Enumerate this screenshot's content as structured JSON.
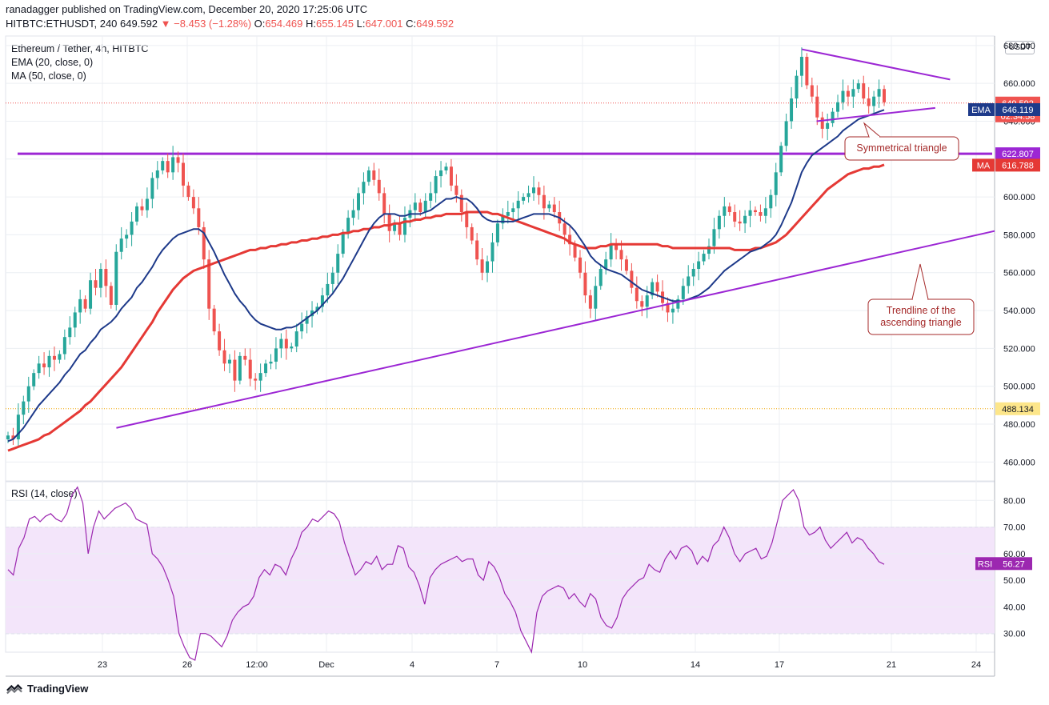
{
  "header": {
    "publisher": "ranadagger published on TradingView.com, December 20, 2020 17:25:06 UTC",
    "symbol": "HITBTC:ETHUSDT, 240",
    "last": "649.592",
    "change": "−8.453 (−1.28%)",
    "open_label": "O:",
    "open": "654.469",
    "high_label": "H:",
    "high": "655.145",
    "low_label": "L:",
    "low": "647.001",
    "close_label": "C:",
    "close": "649.592"
  },
  "legend": {
    "title": "Ethereum / Tether, 4h, HITBTC",
    "ema": "EMA (20, close, 0)",
    "ma": "MA (50, close, 0)",
    "rsi": "RSI (14, close)"
  },
  "currency": "USDT",
  "footer": {
    "brand": "TradingView"
  },
  "colors": {
    "up": "#26a69a",
    "down": "#ef5350",
    "ema": "#1e3a8a",
    "ma": "#e53935",
    "trendline": "#9c27d4",
    "rsi": "#9c27b0",
    "rsi_band": "#f3e5fa",
    "annotation_border": "#a52a2a",
    "grid": "#eceff3"
  },
  "chart_data": [
    {
      "type": "candlestick",
      "title": "Ethereum / Tether, 4h, HITBTC",
      "ylim": [
        450,
        685
      ],
      "y_ticks": [
        "460.000",
        "480.000",
        "500.000",
        "520.000",
        "540.000",
        "560.000",
        "580.000",
        "600.000",
        "620.000",
        "640.000",
        "660.000",
        "680.000"
      ],
      "x_ticks": [
        "23",
        "26",
        "12:00",
        "Dec",
        "4",
        "7",
        "10",
        "14",
        "17",
        "21",
        "24"
      ],
      "price_labels": {
        "last": "649.592",
        "countdown": "02:34:58",
        "ema_tag": "EMA",
        "ema_value": "646.119",
        "level": "622.807",
        "ma_tag": "MA",
        "ma_value": "616.788",
        "low_level": "488.134"
      },
      "horizontal_level": 622.807,
      "low_reference": 488.134,
      "last_price": 649.592,
      "ohlc_closes": [
        474,
        472,
        485,
        492,
        500,
        507,
        512,
        510,
        516,
        514,
        517,
        526,
        531,
        539,
        546,
        541,
        556,
        552,
        562,
        553,
        543,
        571,
        578,
        580,
        587,
        595,
        593,
        599,
        610,
        614,
        619,
        613,
        621,
        618,
        606,
        600,
        594,
        584,
        567,
        541,
        529,
        519,
        512,
        514,
        503,
        516,
        514,
        504,
        503,
        507,
        512,
        513,
        520,
        525,
        520,
        521,
        529,
        533,
        537,
        540,
        542,
        548,
        554,
        560,
        570,
        581,
        589,
        593,
        602,
        608,
        614,
        609,
        602,
        591,
        582,
        586,
        580,
        589,
        593,
        597,
        592,
        598,
        602,
        611,
        614,
        616,
        606,
        601,
        592,
        584,
        577,
        567,
        560,
        566,
        576,
        586,
        590,
        592,
        594,
        598,
        600,
        602,
        605,
        601,
        594,
        596,
        592,
        586,
        580,
        575,
        568,
        560,
        548,
        541,
        553,
        562,
        567,
        575,
        572,
        567,
        561,
        552,
        545,
        542,
        548,
        555,
        550,
        544,
        539,
        541,
        546,
        553,
        558,
        562,
        566,
        570,
        574,
        583,
        590,
        595,
        592,
        587,
        586,
        590,
        593,
        592,
        590,
        594,
        601,
        613,
        627,
        640,
        652,
        664,
        674,
        659,
        653,
        642,
        636,
        639,
        645,
        650,
        656,
        653,
        657,
        660,
        652,
        648,
        653,
        657,
        650
      ],
      "ema20_values": [
        471,
        472,
        475,
        478,
        482,
        486,
        490,
        493,
        496,
        499,
        502,
        506,
        509,
        513,
        517,
        519,
        523,
        526,
        530,
        532,
        534,
        537,
        541,
        544,
        547,
        552,
        555,
        559,
        563,
        568,
        572,
        575,
        578,
        580,
        581,
        582,
        583,
        583,
        581,
        576,
        571,
        565,
        559,
        554,
        549,
        545,
        542,
        538,
        535,
        533,
        532,
        531,
        530,
        530,
        531,
        531,
        532,
        534,
        536,
        538,
        540,
        543,
        546,
        549,
        553,
        557,
        562,
        567,
        572,
        577,
        582,
        586,
        589,
        591,
        591,
        591,
        590,
        590,
        591,
        591,
        591,
        592,
        593,
        595,
        597,
        599,
        599,
        600,
        599,
        599,
        597,
        594,
        590,
        588,
        587,
        587,
        587,
        587,
        587,
        588,
        589,
        590,
        591,
        591,
        591,
        591,
        590,
        589,
        587,
        585,
        582,
        578,
        574,
        569,
        566,
        564,
        562,
        561,
        560,
        559,
        557,
        555,
        553,
        551,
        550,
        549,
        548,
        547,
        546,
        545,
        545,
        545,
        546,
        547,
        548,
        550,
        552,
        555,
        558,
        561,
        563,
        565,
        567,
        569,
        571,
        572,
        573,
        575,
        577,
        580,
        585,
        591,
        597,
        605,
        613,
        618,
        622,
        624,
        626,
        628,
        630,
        632,
        635,
        637,
        639,
        641,
        642,
        643,
        644,
        645,
        646
      ],
      "ma50_values": [
        466,
        467,
        468,
        469,
        470,
        471,
        472,
        474,
        475,
        477,
        479,
        481,
        483,
        485,
        487,
        490,
        492,
        495,
        498,
        501,
        504,
        507,
        510,
        514,
        518,
        522,
        526,
        530,
        534,
        539,
        543,
        547,
        551,
        554,
        557,
        559,
        561,
        562,
        563,
        564,
        565,
        566,
        567,
        568,
        569,
        570,
        571,
        572,
        572,
        573,
        573,
        574,
        574,
        575,
        575,
        576,
        576,
        577,
        577,
        578,
        578,
        579,
        579,
        580,
        580,
        581,
        581,
        582,
        582,
        583,
        583,
        584,
        584,
        585,
        585,
        586,
        586,
        587,
        587,
        588,
        588,
        589,
        589,
        590,
        590,
        591,
        591,
        591,
        591,
        592,
        592,
        592,
        592,
        592,
        591,
        591,
        590,
        589,
        588,
        587,
        586,
        585,
        584,
        583,
        582,
        581,
        580,
        579,
        578,
        576,
        575,
        574,
        573,
        573,
        573,
        574,
        574,
        575,
        575,
        575,
        575,
        575,
        575,
        575,
        575,
        575,
        575,
        574,
        574,
        573,
        573,
        573,
        573,
        573,
        573,
        573,
        573,
        573,
        573,
        573,
        573,
        572,
        572,
        572,
        572,
        573,
        573,
        574,
        575,
        576,
        578,
        580,
        583,
        586,
        589,
        592,
        595,
        598,
        601,
        604,
        606,
        608,
        610,
        612,
        613,
        614,
        615,
        615,
        616,
        616,
        617
      ],
      "trendlines": [
        {
          "name": "ascending-triangle-trendline",
          "from": [
            0.112,
            478
          ],
          "to": [
            1.0,
            582
          ]
        },
        {
          "name": "triangle-upper",
          "from": [
            0.805,
            678
          ],
          "to": [
            0.955,
            662
          ]
        },
        {
          "name": "triangle-lower",
          "from": [
            0.82,
            640
          ],
          "to": [
            0.94,
            647
          ]
        }
      ],
      "annotations": [
        {
          "text": "Symmetrical triangle"
        },
        {
          "text": "Trendline of the ascending triangle"
        }
      ]
    },
    {
      "type": "line",
      "title": "RSI (14, close)",
      "ylim": [
        23,
        87
      ],
      "y_ticks": [
        "30.00",
        "40.00",
        "50.00",
        "60.00",
        "70.00",
        "80.00"
      ],
      "band": [
        30,
        70
      ],
      "last_value": 56.27,
      "last_label": "56.27",
      "tag": "RSI",
      "values": [
        54,
        52,
        62,
        66,
        73,
        74,
        72,
        74,
        75,
        73,
        72,
        75,
        82,
        85,
        79,
        60,
        70,
        76,
        73,
        75,
        77,
        78,
        79,
        77,
        73,
        72,
        71,
        60,
        58,
        55,
        50,
        44,
        30,
        25,
        21,
        20,
        30,
        30,
        29,
        27,
        25,
        29,
        35,
        38,
        40,
        41,
        44,
        51,
        54,
        52,
        56,
        55,
        52,
        58,
        62,
        68,
        70,
        73,
        72,
        74,
        76,
        75,
        72,
        64,
        58,
        52,
        54,
        57,
        56,
        59,
        54,
        56,
        56,
        63,
        62,
        55,
        53,
        48,
        41,
        51,
        54,
        56,
        57,
        58,
        59,
        57,
        58,
        58,
        52,
        50,
        57,
        55,
        51,
        45,
        42,
        38,
        31,
        27,
        23,
        38,
        44,
        46,
        47,
        48,
        47,
        43,
        45,
        42,
        40,
        45,
        43,
        36,
        33,
        32,
        36,
        43,
        46,
        48,
        50,
        51,
        56,
        54,
        53,
        58,
        61,
        58,
        62,
        63,
        61,
        56,
        59,
        57,
        63,
        65,
        70,
        66,
        60,
        57,
        60,
        61,
        62,
        58,
        59,
        64,
        72,
        80,
        82,
        84,
        80,
        70,
        67,
        68,
        70,
        65,
        62,
        64,
        66,
        68,
        64,
        66,
        65,
        62,
        60,
        57,
        56
      ],
      "x_ticks": [
        "23",
        "26",
        "12:00",
        "Dec",
        "4",
        "7",
        "10",
        "14",
        "17",
        "21",
        "24"
      ]
    }
  ]
}
